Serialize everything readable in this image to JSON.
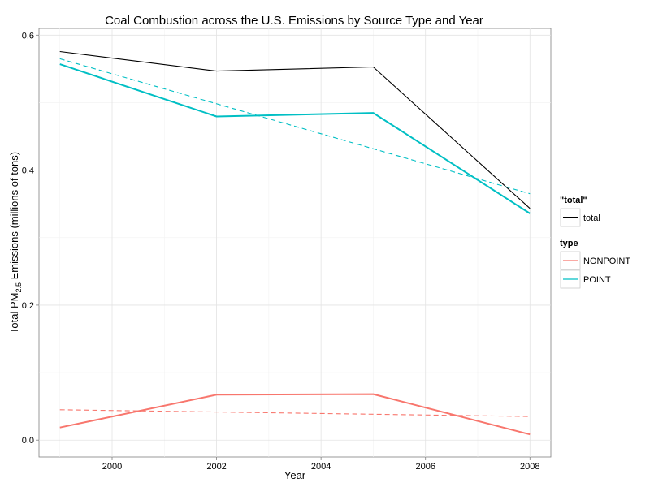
{
  "chart_data": {
    "type": "line",
    "title": "Coal Combustion across the U.S. Emissions by Source Type and Year",
    "xlabel": "Year",
    "ylabel": {
      "prefix": "Total PM",
      "subscript": "2.5",
      "suffix": " Emissions (millions of tons)"
    },
    "xlim": [
      1998.6,
      2008.4
    ],
    "ylim": [
      -0.025,
      0.61
    ],
    "x_ticks": [
      2000,
      2002,
      2004,
      2006,
      2008
    ],
    "x_tick_labels": [
      "2000",
      "2002",
      "2004",
      "2006",
      "2008"
    ],
    "y_ticks": [
      0.0,
      0.2,
      0.4,
      0.6
    ],
    "y_tick_labels": [
      "0.0",
      "0.2",
      "0.4",
      "0.6"
    ],
    "grid": true,
    "legend_placement": "right",
    "legends": [
      {
        "title": "\"total\"",
        "entries": [
          {
            "label": "total",
            "color": "#000000"
          }
        ]
      },
      {
        "title": "type",
        "entries": [
          {
            "label": "NONPOINT",
            "color": "#F8766D"
          },
          {
            "label": "POINT",
            "color": "#00BFC4"
          }
        ]
      }
    ],
    "series": [
      {
        "name": "total",
        "color": "#000000",
        "style": "solid",
        "x": [
          1999,
          2002,
          2005,
          2008
        ],
        "y": [
          0.5757,
          0.5468,
          0.5529,
          0.3432
        ]
      },
      {
        "name": "POINT",
        "color": "#00BFC4",
        "style": "solid",
        "x": [
          1999,
          2002,
          2005,
          2008
        ],
        "y": [
          0.557,
          0.4795,
          0.4848,
          0.3358
        ]
      },
      {
        "name": "NONPOINT",
        "color": "#F8766D",
        "style": "solid",
        "x": [
          1999,
          2002,
          2005,
          2008
        ],
        "y": [
          0.0187,
          0.0673,
          0.0681,
          0.0084
        ]
      },
      {
        "color": "#00BFC4",
        "style": "dashed",
        "x": [
          1999,
          2008
        ],
        "y": [
          0.565,
          0.365
        ]
      },
      {
        "color": "#F8766D",
        "style": "dashed",
        "x": [
          1999,
          2008
        ],
        "y": [
          0.045,
          0.035
        ]
      }
    ]
  }
}
